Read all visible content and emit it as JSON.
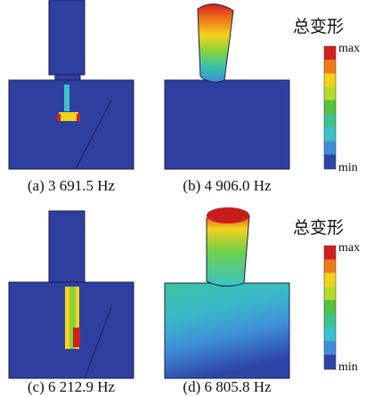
{
  "panels": [
    {
      "caption": "(a) 3 691.5 Hz"
    },
    {
      "caption": "(b) 4 906.0 Hz"
    },
    {
      "caption": "(c) 6 212.9 Hz"
    },
    {
      "caption": "(d) 6 805.8 Hz"
    }
  ],
  "legends": [
    {
      "title": "总变形",
      "max": "max",
      "min": "min"
    },
    {
      "title": "总变形",
      "max": "max",
      "min": "min"
    }
  ]
}
